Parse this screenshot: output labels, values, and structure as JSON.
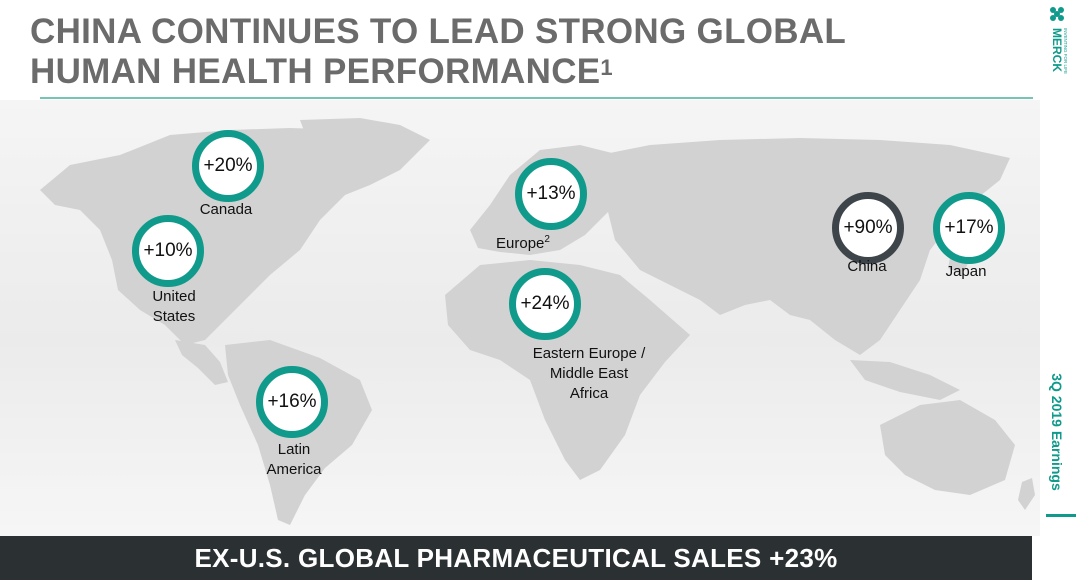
{
  "title": {
    "line1": "CHINA CONTINUES TO LEAD STRONG GLOBAL",
    "line2": "HUMAN HEALTH PERFORMANCE",
    "footnote_mark": "1"
  },
  "regions": {
    "canada": {
      "value": "+20%",
      "label": "Canada"
    },
    "united_states": {
      "value": "+10%",
      "label_line1": "United",
      "label_line2": "States"
    },
    "latin_america": {
      "value": "+16%",
      "label_line1": "Latin",
      "label_line2": "America"
    },
    "europe": {
      "value": "+13%",
      "label": "Europe",
      "footnote_mark": "2"
    },
    "eemea": {
      "value": "+24%",
      "label_line1": "Eastern Europe /",
      "label_line2": "Middle East",
      "label_line3": "Africa"
    },
    "china": {
      "value": "+90%",
      "label": "China"
    },
    "japan": {
      "value": "+17%",
      "label": "Japan"
    }
  },
  "footer": {
    "text": "EX-U.S. GLOBAL PHARMACEUTICAL SALES +23%"
  },
  "brand": {
    "name": "MERCK",
    "tagline": "INVENTING FOR LIFE"
  },
  "side_label": "3Q 2019 Earnings",
  "colors": {
    "accent": "#0f9a8b",
    "china_ring": "#3d444a",
    "title": "#6b6b6b",
    "footer_bg": "#2b3033",
    "map_land": "#d2d2d2"
  }
}
